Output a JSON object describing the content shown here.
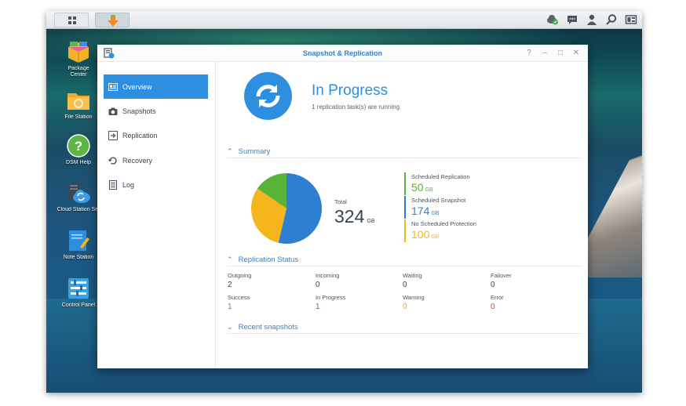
{
  "taskbar": {
    "icons": [
      "main-menu-icon",
      "download-station-icon",
      "cloud-sync-icon",
      "chat-icon",
      "user-icon",
      "search-icon",
      "widgets-icon"
    ]
  },
  "desktop": {
    "icons": [
      {
        "label": "Package\nCenter",
        "icon": "package-center-icon"
      },
      {
        "label": "File Station",
        "icon": "file-station-icon"
      },
      {
        "label": "DSM Help",
        "icon": "dsm-help-icon"
      },
      {
        "label": "Cloud Station Ser",
        "icon": "cloud-station-icon"
      },
      {
        "label": "Note Station",
        "icon": "note-station-icon"
      },
      {
        "label": "Control Panel",
        "icon": "control-panel-icon"
      }
    ]
  },
  "window": {
    "title": "Snapshot & Replication",
    "controls": {
      "help": "?",
      "minimize": "–",
      "maximize": "□",
      "close": "✕"
    }
  },
  "sidebar": {
    "items": [
      {
        "label": "Overview",
        "icon": "overview-icon",
        "active": true
      },
      {
        "label": "Snapshots",
        "icon": "camera-icon",
        "active": false
      },
      {
        "label": "Replication",
        "icon": "replication-icon",
        "active": false
      },
      {
        "label": "Recovery",
        "icon": "recovery-icon",
        "active": false
      },
      {
        "label": "Log",
        "icon": "log-icon",
        "active": false
      }
    ]
  },
  "status": {
    "title": "In Progress",
    "subtitle": "1 replication task(s) are running."
  },
  "summary": {
    "heading": "Summary",
    "total_label": "Total",
    "total_value": "324",
    "total_unit": "GB",
    "legend": [
      {
        "label": "Scheduled Replication",
        "value": "50",
        "unit": "GB",
        "color": "#59b339"
      },
      {
        "label": "Scheduled Snapshot",
        "value": "174",
        "unit": "GB",
        "color": "#2e7fd2"
      },
      {
        "label": "No Scheduled Protection",
        "value": "100",
        "unit": "GB",
        "color": "#f5b51c"
      }
    ]
  },
  "chart_data": {
    "type": "pie",
    "labels": [
      "Scheduled Replication",
      "Scheduled Snapshot",
      "No Scheduled Protection"
    ],
    "values": [
      50,
      174,
      100
    ],
    "colors": [
      "#59b339",
      "#2e7fd2",
      "#f5b51c"
    ]
  },
  "replication_status": {
    "heading": "Replication Status",
    "stats": [
      {
        "label": "Outgoing",
        "value": "2",
        "color": "#38434d"
      },
      {
        "label": "Incoming",
        "value": "0",
        "color": "#38434d"
      },
      {
        "label": "Waiting",
        "value": "0",
        "color": "#38434d"
      },
      {
        "label": "Failover",
        "value": "0",
        "color": "#38434d"
      },
      {
        "label": "Success",
        "value": "1",
        "color": "#4ea22f"
      },
      {
        "label": "In Progress",
        "value": "1",
        "color": "#2e7fd2"
      },
      {
        "label": "Warning",
        "value": "0",
        "color": "#ef9a10"
      },
      {
        "label": "Error",
        "value": "0",
        "color": "#e0452a"
      }
    ]
  },
  "recent_snapshots": {
    "heading": "Recent snapshots"
  }
}
